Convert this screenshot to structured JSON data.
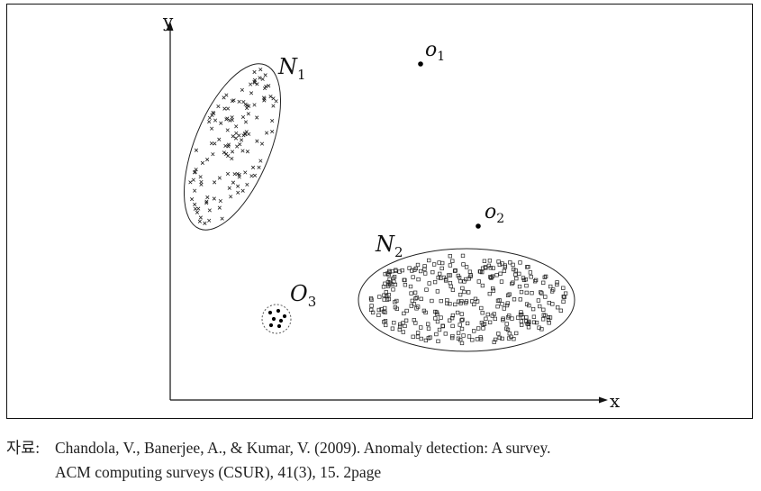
{
  "axes": {
    "x_label": "x",
    "y_label": "y"
  },
  "regions": {
    "n1": {
      "label": "N",
      "subscript": "1",
      "marker": "cross"
    },
    "n2": {
      "label": "N",
      "subscript": "2",
      "marker": "square"
    },
    "o3": {
      "label": "O",
      "subscript": "3"
    }
  },
  "points": {
    "o1": {
      "label": "o",
      "subscript": "1"
    },
    "o2": {
      "label": "o",
      "subscript": "2"
    }
  },
  "caption": {
    "prefix": "자료:",
    "line1": "Chandola, V., Banerjee, A., & Kumar, V. (2009). Anomaly detection: A survey.",
    "line2": "ACM computing surveys (CSUR), 41(3), 15. 2page"
  }
}
